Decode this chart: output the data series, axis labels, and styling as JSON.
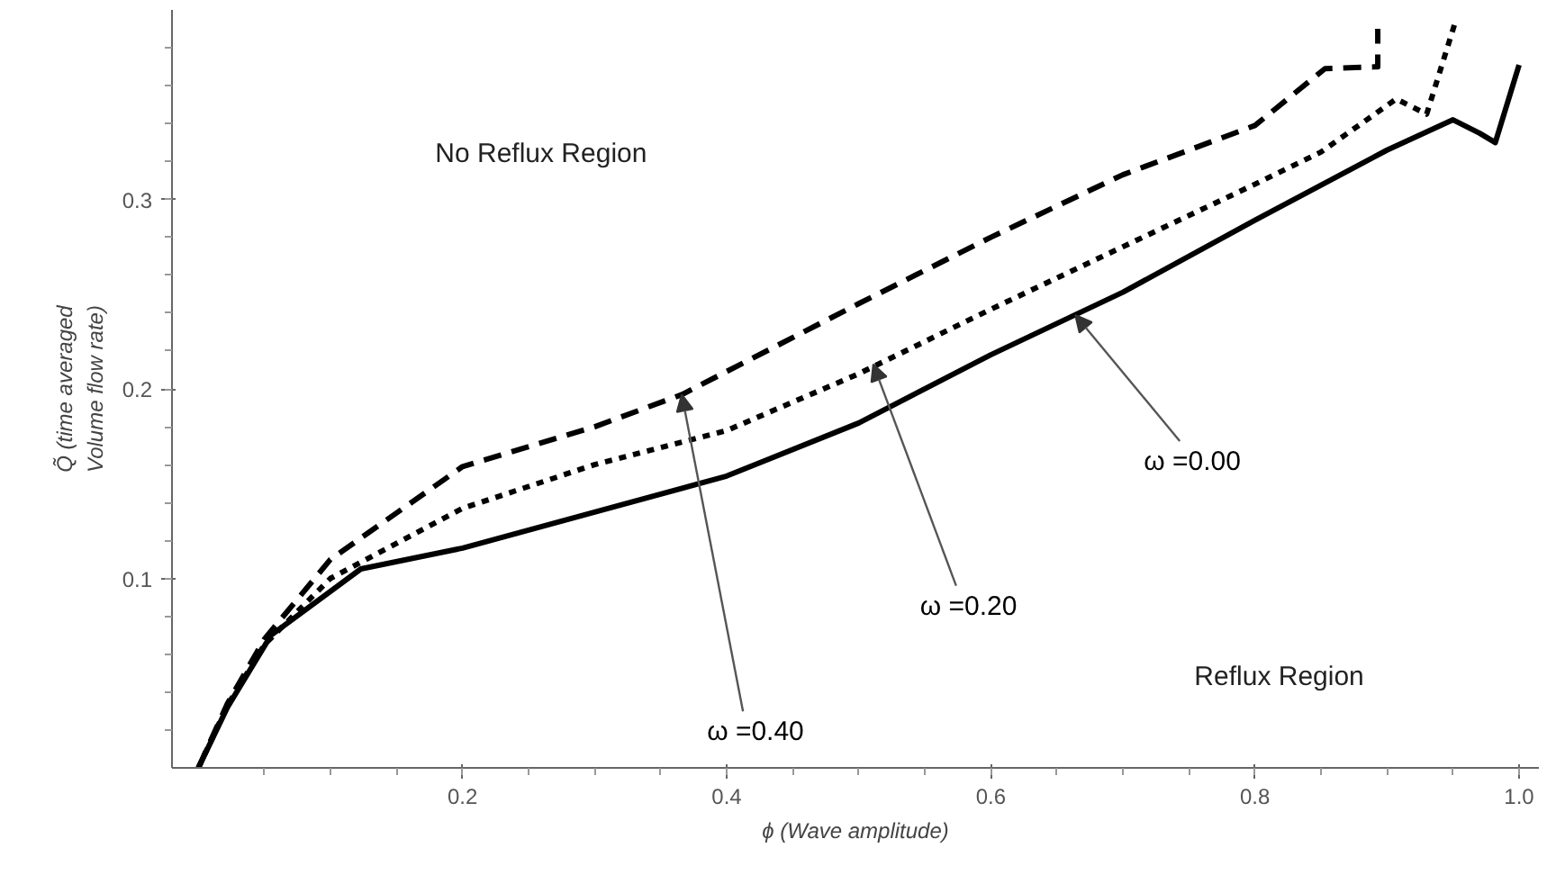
{
  "chart_data": {
    "type": "line",
    "xlabel": "ϕ (Wave amplitude)",
    "ylabel": "Q̃ (time averaged\nVolume flow rate)",
    "xlim": [
      -0.02,
      1.015
    ],
    "ylim": [
      0,
      0.4
    ],
    "xticks": [
      0.2,
      0.4,
      0.6,
      0.8,
      {
        "value": 1.0,
        "label": "1.0"
      }
    ],
    "yticks": [
      0.1,
      0.2,
      0.3
    ],
    "grid": false,
    "series": [
      {
        "color": "#000000",
        "line_style": "solid",
        "x": [
          0,
          0.022,
          0.055,
          0.123,
          0.2,
          0.3,
          0.4,
          0.5,
          0.6,
          0.7,
          0.8,
          0.9,
          0.95,
          0.97,
          0.982,
          1.0
        ],
        "values": [
          0,
          0.032,
          0.07,
          0.105,
          0.116,
          0.135,
          0.154,
          0.182,
          0.218,
          0.251,
          0.289,
          0.326,
          0.342,
          0.335,
          0.33,
          0.371
        ]
      },
      {
        "color": "#000000",
        "line_style": "dotted",
        "x": [
          0,
          0.022,
          0.05,
          0.1,
          0.2,
          0.3,
          0.4,
          0.5,
          0.6,
          0.7,
          0.8,
          0.85,
          0.907,
          0.93,
          0.951
        ],
        "values": [
          0,
          0.033,
          0.065,
          0.1,
          0.137,
          0.16,
          0.178,
          0.208,
          0.242,
          0.275,
          0.308,
          0.325,
          0.353,
          0.345,
          0.392
        ]
      },
      {
        "color": "#000000",
        "line_style": "dashed",
        "x": [
          0,
          0.022,
          0.05,
          0.1,
          0.2,
          0.3,
          0.366,
          0.5,
          0.6,
          0.7,
          0.8,
          0.853,
          0.893,
          0.893
        ],
        "values": [
          0,
          0.034,
          0.068,
          0.11,
          0.159,
          0.18,
          0.197,
          0.245,
          0.28,
          0.313,
          0.339,
          0.369,
          0.37,
          0.39
        ]
      }
    ],
    "annotations": [
      "No Reflux Region",
      "Reflux Region",
      {
        "text": "ω =0.00",
        "x": 0.664,
        "y": 0.239
      },
      {
        "text": "ω =0.20",
        "x": 0.511,
        "y": 0.213
      },
      {
        "text": "ω =0.40",
        "x": 0.366,
        "y": 0.197
      }
    ]
  }
}
